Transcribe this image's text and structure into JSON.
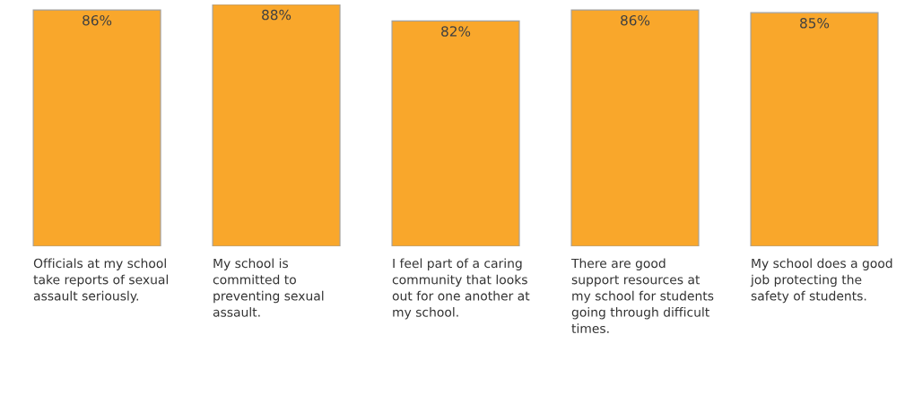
{
  "chart_data": {
    "type": "bar",
    "categories": [
      "Officials at my school take reports of sexual assault seriously.",
      "My school is committed to preventing sexual assault.",
      "I feel part of a caring community that looks out for one another at my school.",
      "There are good support resources at my school for students going through difficult times.",
      "My school does a good job protecting the safety of students."
    ],
    "values": [
      86,
      88,
      82,
      86,
      85
    ],
    "value_labels": [
      "86%",
      "88%",
      "82%",
      "86%",
      "85%"
    ],
    "color": "#f9a72b",
    "ylim": [
      0,
      88
    ]
  }
}
